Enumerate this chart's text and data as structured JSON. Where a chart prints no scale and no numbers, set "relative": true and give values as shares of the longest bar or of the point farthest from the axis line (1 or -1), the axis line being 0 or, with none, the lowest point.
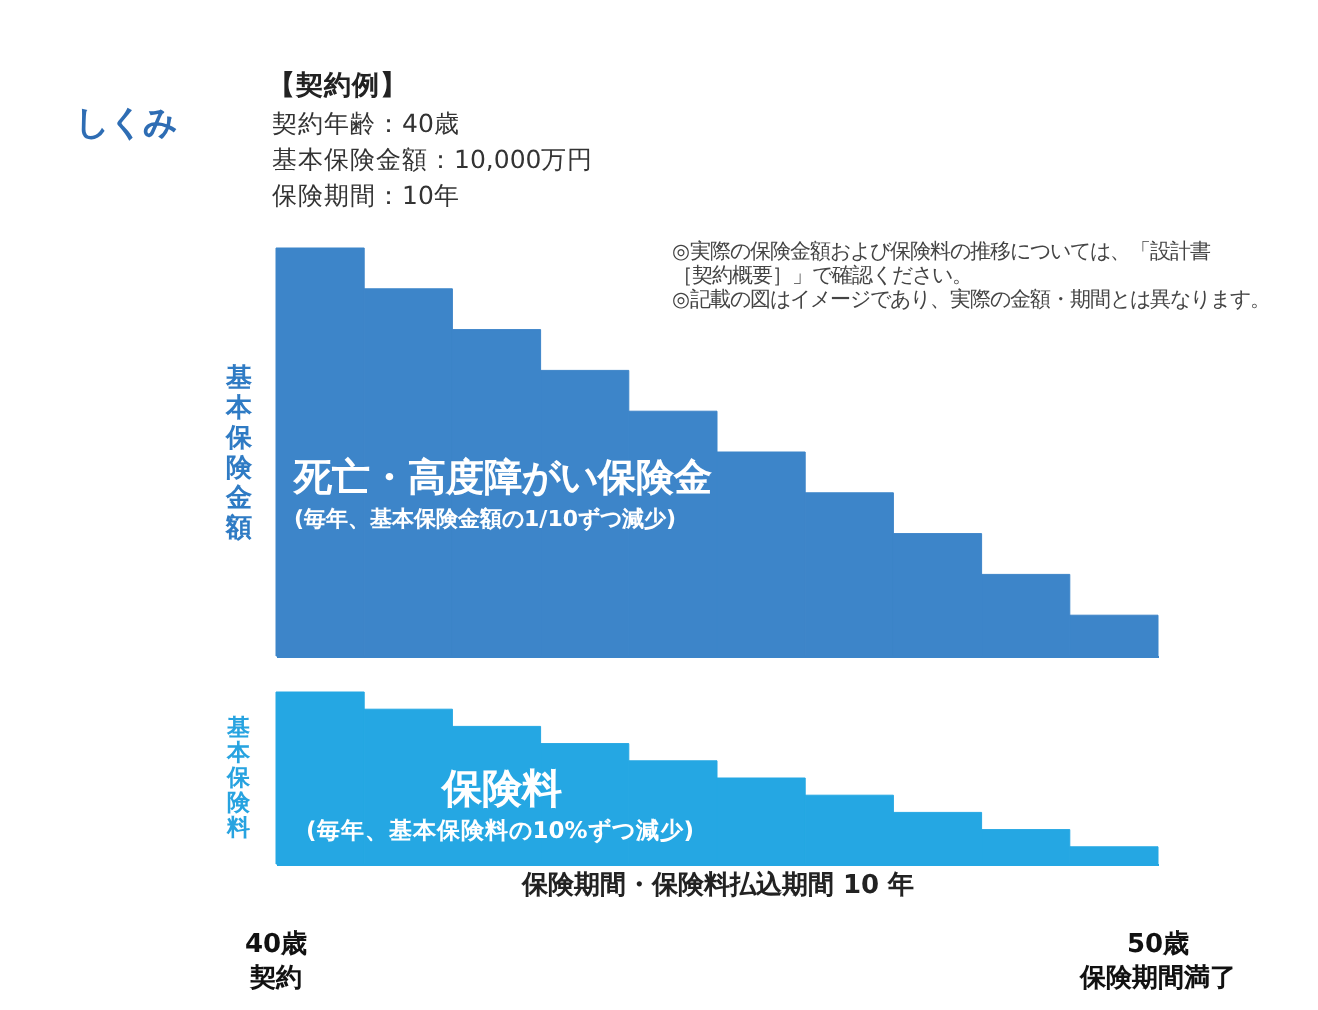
{
  "chart_data": [
    {
      "type": "other",
      "title": "しくみ",
      "annotations": [
        "【契約例】",
        "契約年齢：40歳",
        "基本保険金額：10,000万円",
        "保険期間：10年"
      ]
    },
    {
      "type": "bar",
      "relative": true,
      "ylabel": "基本保険金額",
      "categories": [
        null,
        null,
        null,
        null,
        null,
        null,
        null,
        null,
        null,
        null
      ],
      "values": [
        1,
        0.9,
        0.8,
        0.7,
        0.6,
        0.5,
        0.4,
        0.3,
        0.2,
        0.1
      ],
      "color": "#3d85c9",
      "tick_labels": false,
      "annotations": [
        "死亡・高度障がい保険金",
        "(毎年、基本保険金額の1/10ずつ減少)",
        "◎実際の保険金額および保険料の推移については、「設計書［契約概要］」で確認ください。",
        "◎記載の図はイメージであり、実際の金額・期間とは異なります。"
      ]
    },
    {
      "type": "bar",
      "relative": true,
      "ylabel": "基本保険料",
      "xlabel": "保険期間・保険料払込期間 10 年",
      "categories": [
        null,
        null,
        null,
        null,
        null,
        null,
        null,
        null,
        null,
        null
      ],
      "values": [
        1,
        0.9,
        0.8,
        0.7,
        0.6,
        0.5,
        0.4,
        0.3,
        0.2,
        0.1
      ],
      "color": "#25a7e3",
      "tick_labels": false,
      "annotations": [
        "保険料",
        "(毎年、基本保険料の10%ずつ減少)",
        "40歳",
        "契約",
        "50歳",
        "保険期間満了"
      ]
    }
  ]
}
